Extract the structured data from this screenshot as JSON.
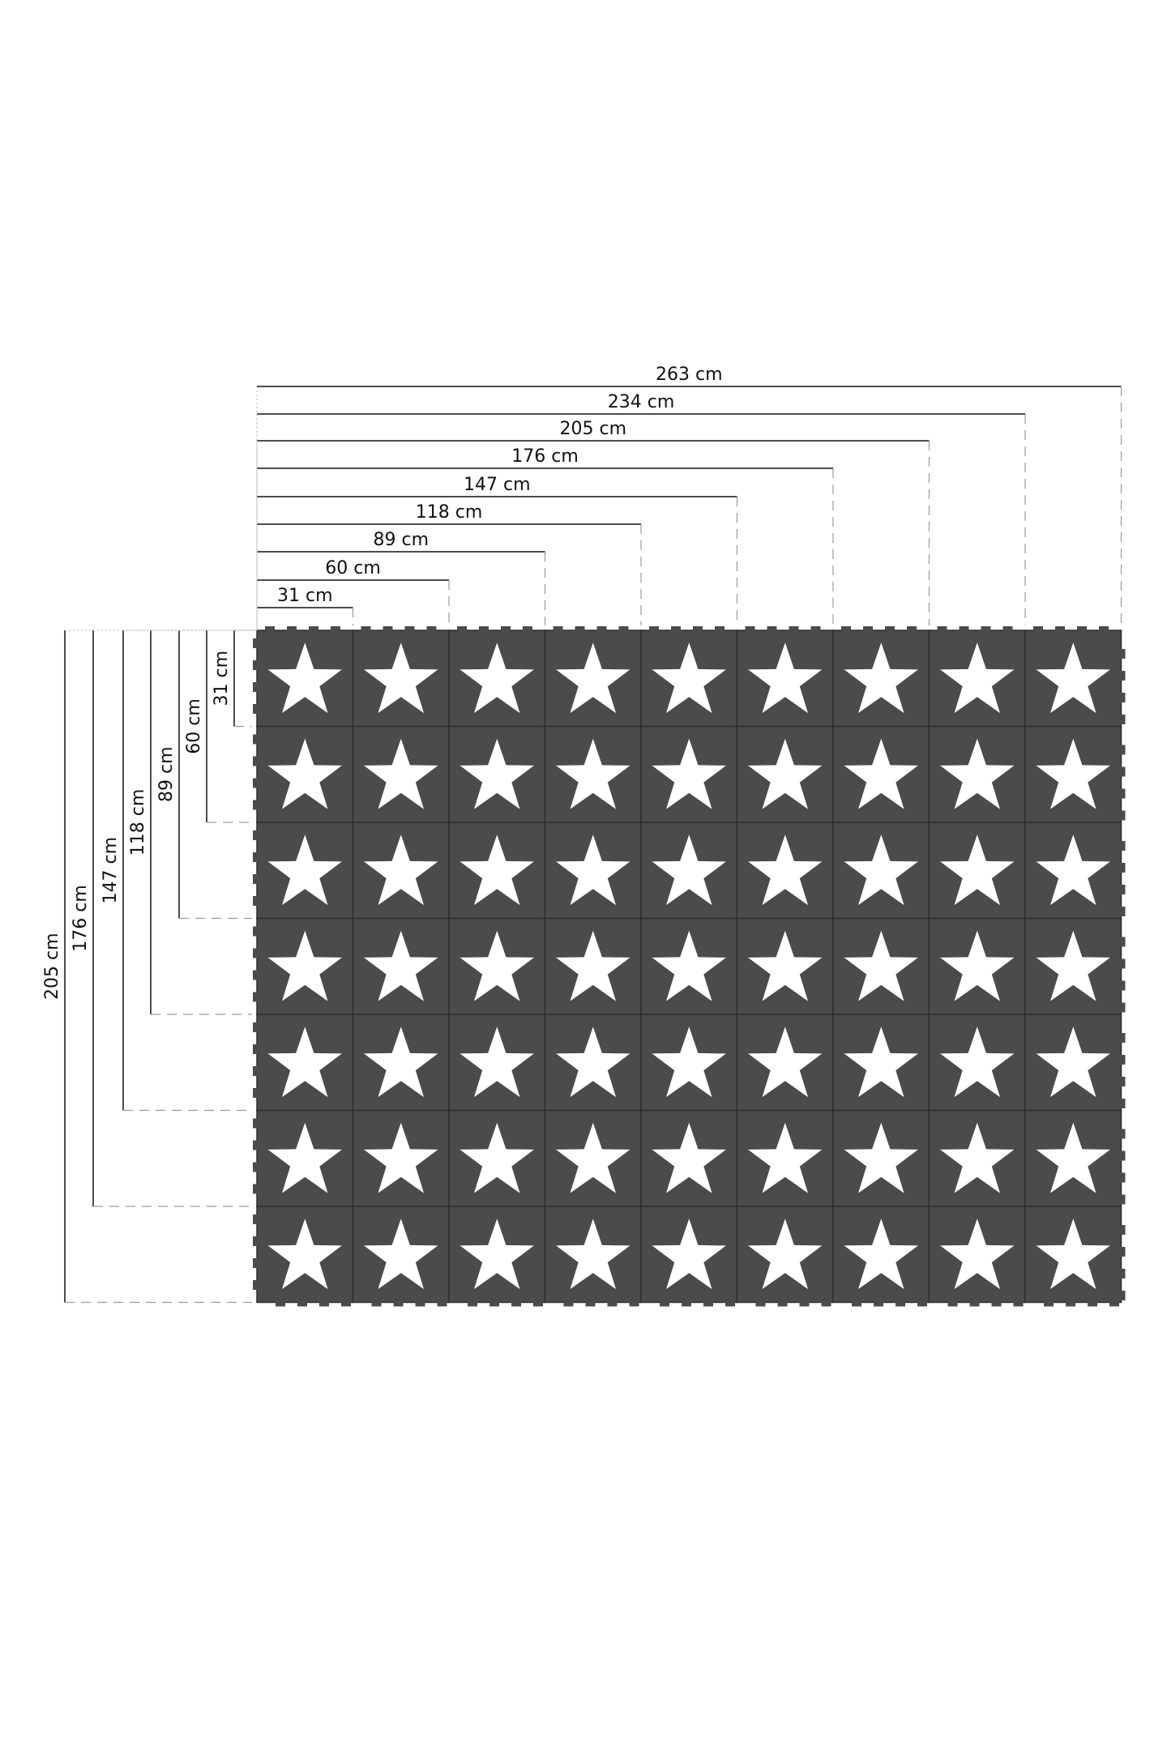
{
  "colors": {
    "tile": "#4b4b4b",
    "seam": "#2e2e2e",
    "star": "#ffffff",
    "line": "#111111",
    "guide": "#9a9a9a"
  },
  "grid": {
    "columns": 9,
    "rows": 7,
    "icon": "star-icon"
  },
  "width_labels": [
    "31 cm",
    "60 cm",
    "89 cm",
    "118 cm",
    "147 cm",
    "176 cm",
    "205 cm",
    "234 cm",
    "263 cm"
  ],
  "height_labels": [
    "31 cm",
    "60 cm",
    "89 cm",
    "118 cm",
    "147 cm",
    "176 cm",
    "205 cm"
  ]
}
